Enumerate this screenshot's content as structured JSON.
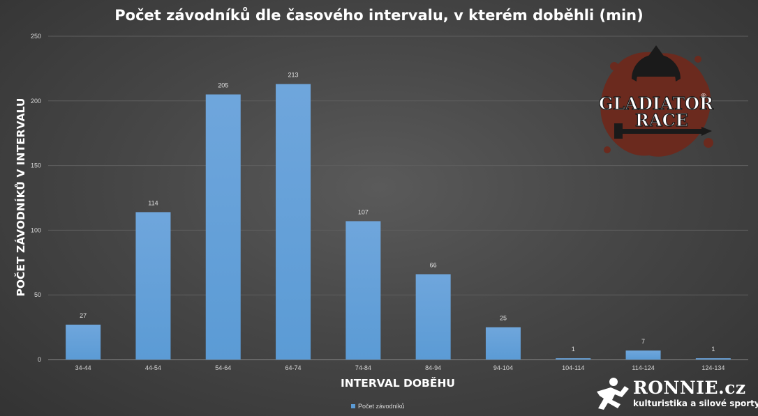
{
  "chart_data": {
    "type": "bar",
    "title": "Počet závodníků dle časového intervalu, v kterém doběhli (min)",
    "xlabel": "INTERVAL DOBĚHU",
    "ylabel": "POČET ZÁVODNÍKŮ V INTERVALU",
    "categories": [
      "34-44",
      "44-54",
      "54-64",
      "64-74",
      "74-84",
      "84-94",
      "94-104",
      "104-114",
      "114-124",
      "124-134"
    ],
    "series": [
      {
        "name": "Počet závodníků",
        "values": [
          27,
          114,
          205,
          213,
          107,
          66,
          25,
          1,
          7,
          1
        ]
      }
    ],
    "ylim": [
      0,
      250
    ],
    "yticks": [
      0,
      50,
      100,
      150,
      200,
      250
    ],
    "grid": true,
    "legend": "bottom-center",
    "bar_color": "#5b9bd5"
  },
  "logo": {
    "line1": "GLADIATOR",
    "line2": "RACE",
    "mark": "®"
  },
  "watermark": {
    "name": "RONNIE.cz",
    "tagline": "kulturistika a silové sporty"
  }
}
